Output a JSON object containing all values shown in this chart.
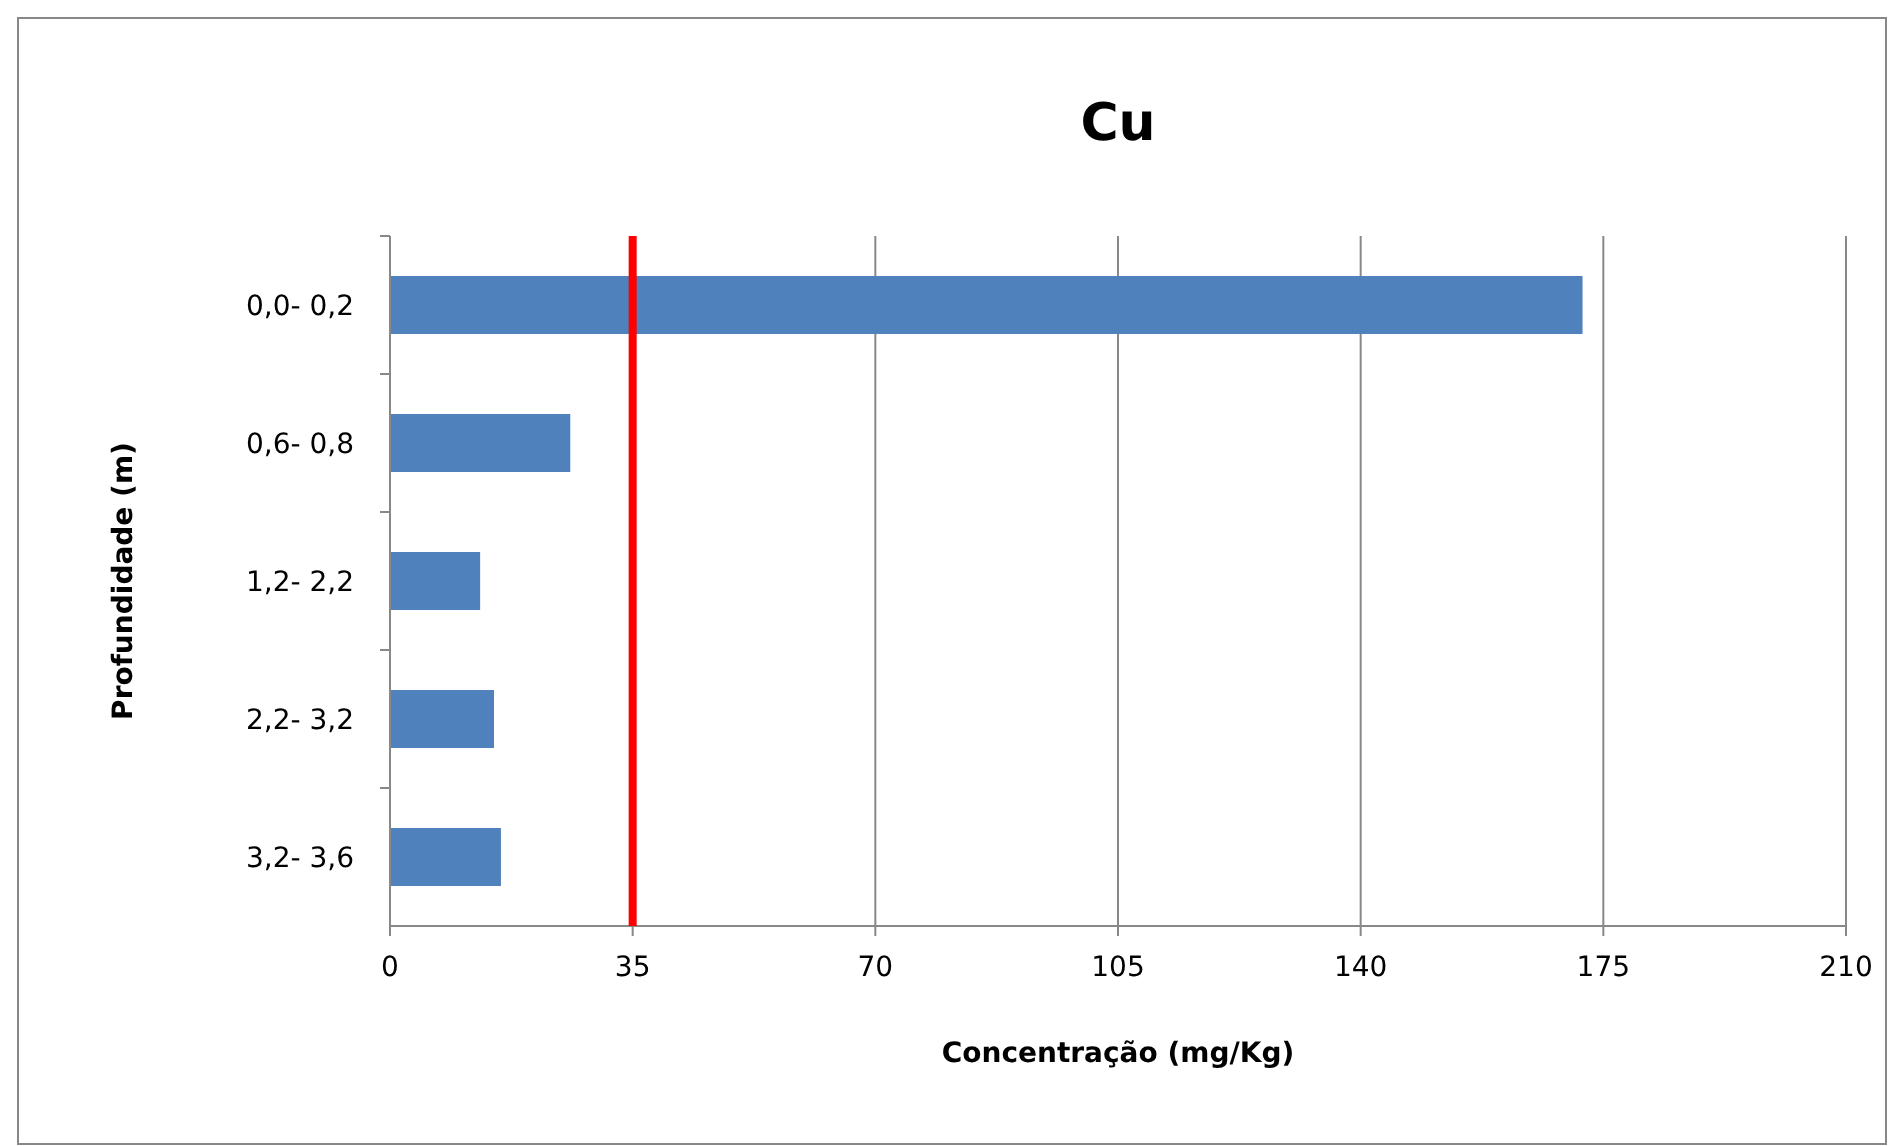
{
  "chart_data": {
    "type": "bar",
    "orientation": "horizontal",
    "title": "Cu",
    "xlabel": "Concentração (mg/Kg)",
    "ylabel": "Profundidade (m)",
    "categories": [
      "0,0- 0,2",
      "0,6- 0,8",
      "1,2- 2,2",
      "2,2- 3,2",
      "3,2- 3,6"
    ],
    "values": [
      172,
      26,
      13,
      15,
      16
    ],
    "color": "#4f81bd",
    "xlim": [
      0,
      210
    ],
    "xticks": [
      0,
      35,
      70,
      105,
      140,
      175,
      210
    ],
    "grid": "x",
    "ref_lines": [
      {
        "axis": "x",
        "value": 35,
        "color": "#ff0000"
      }
    ]
  }
}
